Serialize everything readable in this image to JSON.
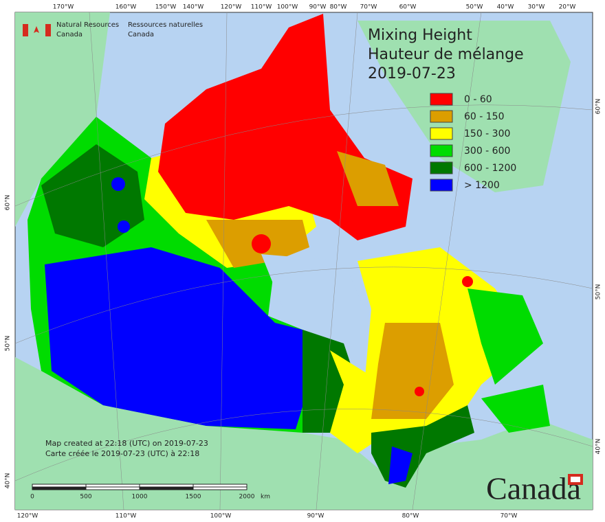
{
  "header": {
    "agency_en": [
      "Natural Resources",
      "Canada"
    ],
    "agency_fr": [
      "Ressources naturelles",
      "Canada"
    ]
  },
  "title": [
    "Mixing Height",
    "Hauteur de mélange",
    "2019-07-23"
  ],
  "legend": [
    {
      "label": "0 - 60",
      "color": "#ff0000"
    },
    {
      "label": "60 - 150",
      "color": "#dc9e00"
    },
    {
      "label": "150 - 300",
      "color": "#ffff00"
    },
    {
      "label": "300 - 600",
      "color": "#00dc00"
    },
    {
      "label": "600 - 1200",
      "color": "#007800"
    },
    {
      "label": "> 1200",
      "color": "#0000ff"
    }
  ],
  "top_ticks": [
    "170°W",
    "160°W",
    "150°W",
    "140°W",
    "120°W",
    "110°W",
    "100°W",
    "90°W",
    "80°W",
    "70°W",
    "60°W",
    "50°W",
    "40°W",
    "30°W",
    "20°W"
  ],
  "bottom_ticks": [
    "120°W",
    "110°W",
    "100°W",
    "90°W",
    "80°W",
    "70°W"
  ],
  "left_ticks": [
    "60°N",
    "50°N",
    "40°N"
  ],
  "right_ticks": [
    "60°N",
    "50°N",
    "40°N"
  ],
  "notes": [
    "Map created at 22:18 (UTC) on 2019-07-23",
    "Carte créée le 2019-07-23 (UTC) à 22:18"
  ],
  "scale": {
    "labels": [
      "0",
      "500",
      "1000",
      "1500",
      "2000"
    ],
    "unit": "km"
  },
  "wordmark": "Canada"
}
